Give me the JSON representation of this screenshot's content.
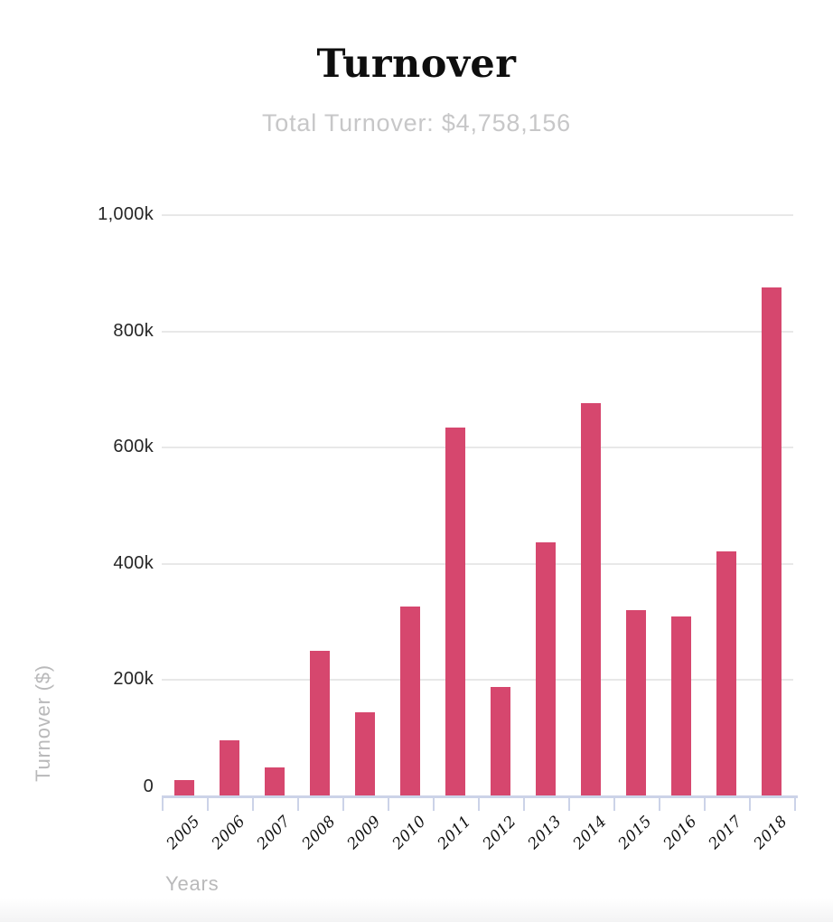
{
  "header": {
    "title": "Turnover",
    "subtitle": "Total Turnover: $4,758,156"
  },
  "chart_data": {
    "type": "bar",
    "title": "Turnover",
    "subtitle": "Total Turnover: $4,758,156",
    "xlabel": "Years",
    "ylabel": "Turnover ($)",
    "categories": [
      "2005",
      "2006",
      "2007",
      "2008",
      "2009",
      "2010",
      "2011",
      "2012",
      "2013",
      "2014",
      "2015",
      "2016",
      "2017",
      "2018"
    ],
    "values_thousands": [
      28,
      97,
      50,
      250,
      144,
      326,
      634,
      188,
      437,
      676,
      321,
      309,
      422,
      876
    ],
    "units": "$ thousands",
    "total_turnover": "$4,758,156",
    "yticks": [
      0,
      200,
      400,
      600,
      800,
      1000
    ],
    "ytick_labels": [
      "0",
      "200k",
      "400k",
      "600k",
      "800k",
      "1,000k"
    ],
    "ylim": [
      0,
      1000
    ],
    "grid": true,
    "legend": "none",
    "bar_color": "#d6476e"
  },
  "colors": {
    "bar": "#d6476e",
    "gridline": "#e8e8e8",
    "axis": "#ccd3e8",
    "title_text": "#0e0e0e",
    "subtitle_text": "#c7c7c8",
    "axis_title_text": "#b9b9ba",
    "ytick_text": "#262626",
    "xtick_text": "#111111"
  }
}
